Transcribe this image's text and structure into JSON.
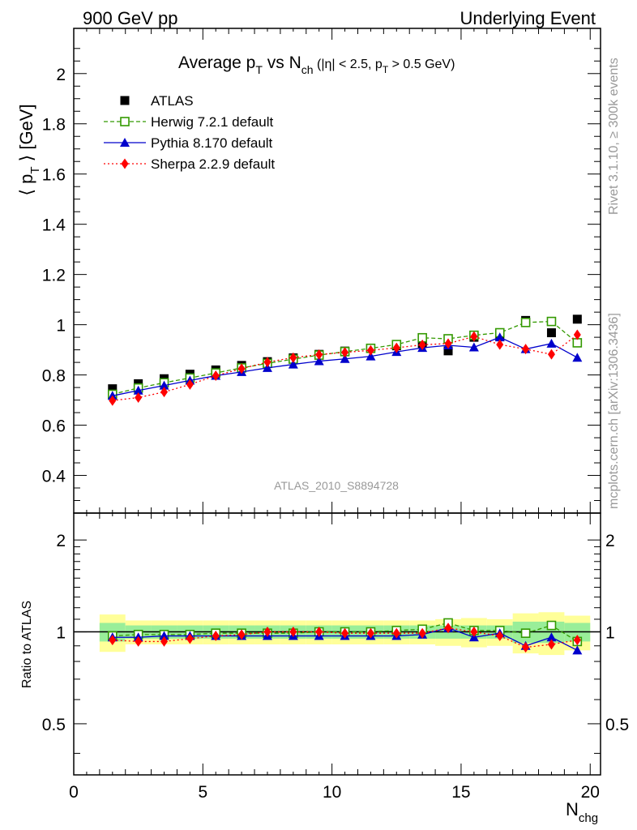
{
  "header": {
    "left": "900 GeV pp",
    "right": "Underlying Event"
  },
  "side_labels": {
    "rivet": "Rivet 3.1.10, ≥ 300k events",
    "mcplots": "mcplots.cern.ch [arXiv:1306.3436]"
  },
  "colors": {
    "atlas": "#000000",
    "herwig": "#339900",
    "pythia": "#0000cc",
    "sherpa": "#ff0000",
    "band_yellow": "#ffff99",
    "band_green": "#99ee99"
  },
  "chart_data": [
    {
      "type": "scatter",
      "panel": "main",
      "title_parts": {
        "pre": "Average p",
        "sub1": "T",
        "mid": " vs N",
        "sub2": "ch",
        "cut": " (|η| < 2.5, p",
        "sub3": "T",
        "cut_end": " > 0.5 GeV)"
      },
      "ylabel_parts": {
        "pre": "⟨ p",
        "sub": "T",
        "post": " ⟩ [GeV]"
      },
      "watermark": "ATLAS_2010_S8894728",
      "xlim": [
        0,
        20.4
      ],
      "ylim": [
        0.25,
        2.18
      ],
      "x_ticks": [
        0,
        5,
        10,
        15,
        20
      ],
      "y_ticks": [
        0.4,
        0.6,
        0.8,
        1,
        1.2,
        1.4,
        1.6,
        1.8,
        2
      ],
      "y_tick_labels": [
        "0.4",
        "0.6",
        "0.8",
        "1",
        "1.2",
        "1.4",
        "1.6",
        "1.8",
        "2"
      ],
      "legend_position": "top-left",
      "x": [
        1.5,
        2.5,
        3.5,
        4.5,
        5.5,
        6.5,
        7.5,
        8.5,
        9.5,
        10.5,
        11.5,
        12.5,
        13.5,
        14.5,
        15.5,
        16.5,
        17.5,
        18.5,
        19.5
      ],
      "series": [
        {
          "name": "ATLAS",
          "key": "atlas",
          "marker": "square",
          "values": [
            0.745,
            0.765,
            0.785,
            0.803,
            0.82,
            0.838,
            0.853,
            0.868,
            0.882,
            0.895,
            0.906,
            0.916,
            0.925,
            0.896,
            0.95,
            0.955,
            1.017,
            0.968,
            1.022
          ]
        },
        {
          "name": "Herwig 7.2.1 default",
          "key": "herwig",
          "marker": "open-square",
          "values": [
            0.723,
            0.748,
            0.769,
            0.788,
            0.808,
            0.828,
            0.846,
            0.863,
            0.879,
            0.893,
            0.906,
            0.921,
            0.948,
            0.944,
            0.958,
            0.968,
            1.009,
            1.013,
            0.928
          ]
        },
        {
          "name": "Pythia 8.170 default",
          "key": "pythia",
          "marker": "triangle",
          "values": [
            0.717,
            0.738,
            0.758,
            0.778,
            0.797,
            0.812,
            0.828,
            0.842,
            0.855,
            0.864,
            0.874,
            0.892,
            0.908,
            0.918,
            0.91,
            0.95,
            0.903,
            0.925,
            0.869
          ]
        },
        {
          "name": "Sherpa 2.2.9 default",
          "key": "sherpa",
          "marker": "diamond",
          "values": [
            0.698,
            0.71,
            0.732,
            0.762,
            0.797,
            0.825,
            0.851,
            0.869,
            0.881,
            0.89,
            0.898,
            0.908,
            0.92,
            0.925,
            0.953,
            0.921,
            0.903,
            0.882,
            0.96
          ]
        }
      ]
    },
    {
      "type": "scatter",
      "panel": "ratio",
      "ylabel": "Ratio to ATLAS",
      "xlabel_parts": {
        "pre": "N",
        "sub": "chg"
      },
      "xlim": [
        0,
        20.4
      ],
      "ylim": [
        0.34,
        2.45
      ],
      "log_y": true,
      "x_ticks": [
        0,
        5,
        10,
        15,
        20
      ],
      "x_tick_labels": [
        "0",
        "5",
        "10",
        "15",
        "20"
      ],
      "y_ticks": [
        0.5,
        1,
        2
      ],
      "y_tick_labels": [
        "0.5",
        "1",
        "2"
      ],
      "x": [
        1.5,
        2.5,
        3.5,
        4.5,
        5.5,
        6.5,
        7.5,
        8.5,
        9.5,
        10.5,
        11.5,
        12.5,
        13.5,
        14.5,
        15.5,
        16.5,
        17.5,
        18.5,
        19.5
      ],
      "band_edges": [
        1,
        2,
        3,
        4,
        5,
        6,
        7,
        8,
        9,
        10,
        11,
        12,
        13,
        14,
        15,
        16,
        17,
        18,
        19,
        20
      ],
      "band_yellow": [
        0.14,
        0.09,
        0.09,
        0.09,
        0.09,
        0.09,
        0.09,
        0.09,
        0.09,
        0.09,
        0.09,
        0.09,
        0.09,
        0.1,
        0.11,
        0.1,
        0.15,
        0.16,
        0.13
      ],
      "band_green": [
        0.07,
        0.05,
        0.05,
        0.05,
        0.05,
        0.05,
        0.05,
        0.05,
        0.05,
        0.05,
        0.05,
        0.05,
        0.05,
        0.05,
        0.05,
        0.05,
        0.08,
        0.08,
        0.07
      ],
      "series": [
        {
          "name": "Herwig 7.2.1 default",
          "key": "herwig",
          "marker": "open-square",
          "values": [
            0.97,
            0.98,
            0.98,
            0.98,
            0.99,
            0.99,
            0.99,
            0.99,
            1.0,
            1.0,
            1.0,
            1.01,
            1.02,
            1.07,
            1.01,
            1.01,
            0.99,
            1.05,
            0.93
          ]
        },
        {
          "name": "Pythia 8.170 default",
          "key": "pythia",
          "marker": "triangle",
          "values": [
            0.96,
            0.96,
            0.97,
            0.97,
            0.97,
            0.97,
            0.97,
            0.97,
            0.97,
            0.97,
            0.97,
            0.97,
            0.98,
            1.03,
            0.96,
            0.99,
            0.9,
            0.96,
            0.87
          ]
        },
        {
          "name": "Sherpa 2.2.9 default",
          "key": "sherpa",
          "marker": "diamond",
          "values": [
            0.94,
            0.93,
            0.93,
            0.95,
            0.97,
            0.98,
            1.0,
            1.0,
            1.0,
            0.99,
            0.99,
            0.99,
            0.99,
            1.03,
            1.0,
            0.97,
            0.89,
            0.91,
            0.94
          ]
        }
      ]
    }
  ]
}
